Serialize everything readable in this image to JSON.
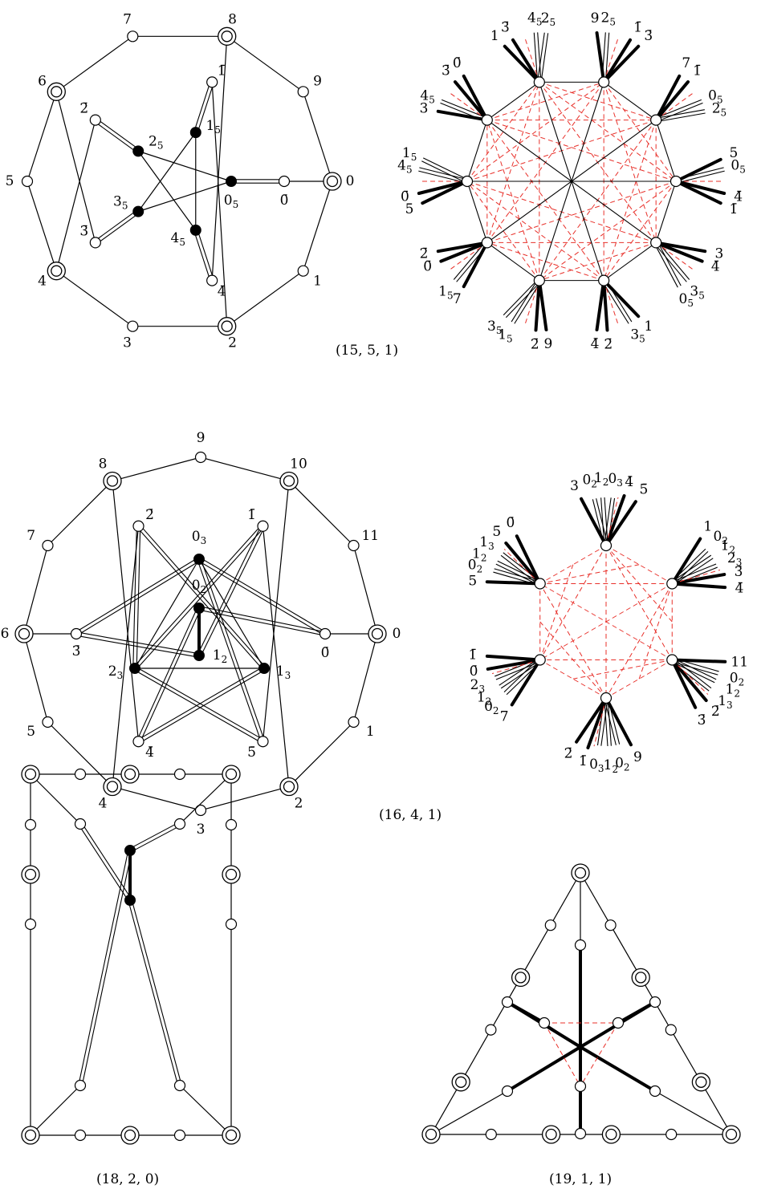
{
  "figures": [
    {
      "id": "fig-15-5-1",
      "caption": "(15, 5, 1)",
      "graph": {
        "outer_nodes": [
          "0",
          "1",
          "2",
          "3",
          "4",
          "5",
          "6",
          "7",
          "8",
          "9"
        ],
        "double_ring_nodes": [
          "0",
          "2",
          "4",
          "6",
          "8"
        ],
        "bar_nodes": [
          "0̄",
          "1̄",
          "2̄",
          "3̄",
          "4̄"
        ],
        "filled_nodes": [
          [
            "0",
            "5"
          ],
          [
            "1",
            "5"
          ],
          [
            "2",
            "5"
          ],
          [
            "3",
            "5"
          ],
          [
            "4",
            "5"
          ]
        ]
      },
      "polygon": {
        "label_groups": [
          [
            [
              "2",
              "5"
            ],
            [
              "4",
              "5"
            ],
            [
              "3̄",
              ""
            ],
            [
              "1",
              ""
            ]
          ],
          [
            [
              "3̄",
              ""
            ],
            [
              "1̄",
              ""
            ],
            [
              "2",
              "5"
            ],
            [
              "9",
              ""
            ]
          ],
          [
            [
              "2",
              "5"
            ],
            [
              "0",
              "5"
            ],
            [
              "1̄",
              ""
            ],
            [
              "7",
              ""
            ]
          ],
          [
            [
              "1̄",
              ""
            ],
            [
              "4̄",
              ""
            ],
            [
              "0",
              "5"
            ],
            [
              "5",
              ""
            ]
          ],
          [
            [
              "0",
              "5"
            ],
            [
              "3",
              "5"
            ],
            [
              "4̄",
              ""
            ],
            [
              "3",
              ""
            ]
          ],
          [
            [
              "4̄",
              ""
            ],
            [
              "2̄",
              ""
            ],
            [
              "3",
              "5"
            ],
            [
              "1",
              ""
            ]
          ],
          [
            [
              "3",
              "5"
            ],
            [
              "1",
              "5"
            ],
            [
              "2̄",
              ""
            ],
            [
              "9",
              ""
            ]
          ],
          [
            [
              "2̄",
              ""
            ],
            [
              "0̄",
              ""
            ],
            [
              "1",
              "5"
            ],
            [
              "7",
              ""
            ]
          ],
          [
            [
              "1",
              "5"
            ],
            [
              "4",
              "5"
            ],
            [
              "0̄",
              ""
            ],
            [
              "5",
              ""
            ]
          ],
          [
            [
              "0̄",
              ""
            ],
            [
              "3̄",
              ""
            ],
            [
              "4",
              "5"
            ],
            [
              "3",
              ""
            ]
          ]
        ]
      }
    },
    {
      "id": "fig-16-4-1",
      "caption": "(16, 4, 1)",
      "graph": {
        "outer_nodes": [
          "0",
          "1",
          "2",
          "3",
          "4",
          "5",
          "6",
          "7",
          "8",
          "9",
          "10",
          "11"
        ],
        "double_ring_nodes": [
          "0",
          "2",
          "4",
          "6",
          "8",
          "10"
        ],
        "bar_nodes": [
          "0̄",
          "1̄",
          "2̄",
          "3̄",
          "4̄",
          "5̄"
        ],
        "filled_nodes": [
          [
            "0",
            "3"
          ],
          [
            "0",
            "2"
          ],
          [
            "1",
            "2"
          ],
          [
            "1",
            "3"
          ],
          [
            "2",
            "3"
          ]
        ]
      },
      "polygon": {
        "label_groups": [
          [
            [
              "5̄",
              ""
            ],
            [
              "4̄",
              ""
            ],
            [
              "0",
              "3"
            ],
            [
              "1",
              "2"
            ],
            [
              "0",
              "2"
            ],
            [
              "3",
              ""
            ]
          ],
          [
            [
              "4̄",
              ""
            ],
            [
              "3̄",
              ""
            ],
            [
              "2",
              "3"
            ],
            [
              "1",
              "2"
            ],
            [
              "0",
              "2"
            ],
            [
              "1",
              ""
            ]
          ],
          [
            [
              "3̄",
              ""
            ],
            [
              "2̄",
              ""
            ],
            [
              "1",
              "3"
            ],
            [
              "1",
              "2"
            ],
            [
              "0",
              "2"
            ],
            [
              "11",
              ""
            ]
          ],
          [
            [
              "2̄",
              ""
            ],
            [
              "1̄",
              ""
            ],
            [
              "0",
              "3"
            ],
            [
              "1",
              "2"
            ],
            [
              "0",
              "2"
            ],
            [
              "9",
              ""
            ]
          ],
          [
            [
              "1̄",
              ""
            ],
            [
              "0̄",
              ""
            ],
            [
              "2",
              "3"
            ],
            [
              "1",
              "2"
            ],
            [
              "0",
              "2"
            ],
            [
              "7",
              ""
            ]
          ],
          [
            [
              "0̄",
              ""
            ],
            [
              "5̄",
              ""
            ],
            [
              "1",
              "3"
            ],
            [
              "1",
              "2"
            ],
            [
              "0",
              "2"
            ],
            [
              "5",
              ""
            ]
          ]
        ]
      }
    },
    {
      "id": "fig-18-2-0",
      "caption": "(18, 2, 0)"
    },
    {
      "id": "fig-19-1-1",
      "caption": "(19, 1, 1)"
    }
  ]
}
